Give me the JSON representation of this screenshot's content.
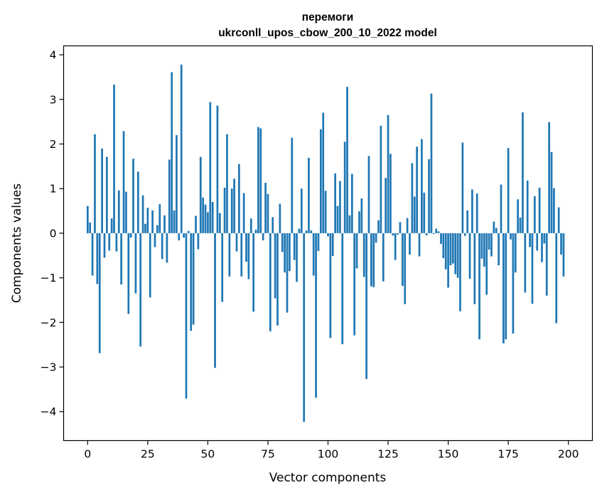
{
  "chart_data": {
    "type": "bar",
    "title_line1": "перемоги",
    "title_line2": "ukrconll_upos_cbow_200_10_2022 model",
    "xlabel": "Vector components",
    "ylabel": "Components values",
    "xlim": [
      -10,
      210
    ],
    "ylim": [
      -4.65,
      4.2
    ],
    "xticks": [
      0,
      25,
      50,
      75,
      100,
      125,
      150,
      175,
      200
    ],
    "yticks": [
      -4,
      -3,
      -2,
      -1,
      0,
      1,
      2,
      3,
      4
    ],
    "xtick_labels": [
      "0",
      "25",
      "50",
      "75",
      "100",
      "125",
      "150",
      "175",
      "200"
    ],
    "ytick_labels": [
      "−4",
      "−3",
      "−2",
      "−1",
      "0",
      "1",
      "2",
      "3",
      "4"
    ],
    "bar_color": "#1f77b4",
    "grid": false,
    "values": [
      0.61,
      0.24,
      -0.95,
      2.22,
      -1.14,
      -2.69,
      1.9,
      -0.55,
      1.71,
      -0.39,
      0.33,
      3.33,
      -0.41,
      0.96,
      -1.15,
      2.29,
      0.93,
      -1.81,
      -0.1,
      1.67,
      -1.35,
      1.38,
      -2.54,
      0.85,
      0.21,
      0.57,
      -1.44,
      0.51,
      -0.31,
      0.18,
      0.65,
      -0.58,
      0.4,
      -0.66,
      1.65,
      3.61,
      0.51,
      2.2,
      -0.16,
      3.78,
      -0.1,
      -3.71,
      0.05,
      -2.19,
      -2.05,
      0.39,
      -0.36,
      1.71,
      0.8,
      0.64,
      0.47,
      2.94,
      0.7,
      -3.02,
      2.86,
      0.45,
      -1.54,
      1.02,
      2.22,
      -0.97,
      1.0,
      1.22,
      -0.41,
      1.55,
      -0.97,
      0.9,
      -0.64,
      -1.03,
      0.33,
      -1.76,
      0.08,
      2.38,
      2.35,
      -0.16,
      1.13,
      0.88,
      -2.2,
      0.36,
      -1.46,
      -2.07,
      0.66,
      -0.42,
      -0.88,
      -1.78,
      -0.85,
      2.14,
      -0.6,
      -1.09,
      0.1,
      1.0,
      -4.23,
      0.06,
      1.69,
      0.06,
      -0.95,
      -3.69,
      -0.4,
      2.33,
      2.7,
      0.95,
      -0.07,
      -2.35,
      -0.51,
      1.34,
      0.61,
      1.17,
      -2.49,
      2.05,
      3.28,
      0.4,
      1.33,
      -2.29,
      -0.79,
      0.49,
      0.78,
      -0.98,
      -3.27,
      1.73,
      -1.19,
      -1.21,
      -0.21,
      0.29,
      2.41,
      -1.08,
      1.24,
      2.65,
      1.78,
      -0.05,
      -0.6,
      -0.03,
      0.25,
      -1.18,
      -1.59,
      0.34,
      -0.48,
      1.57,
      0.82,
      1.94,
      -0.52,
      2.11,
      0.91,
      -0.05,
      1.66,
      3.13,
      -0.02,
      0.1,
      0.04,
      -0.24,
      -0.56,
      -0.81,
      -1.22,
      -0.72,
      -0.68,
      -0.92,
      -1.0,
      -1.75,
      2.03,
      -0.06,
      0.51,
      -1.02,
      0.98,
      -1.59,
      0.89,
      -2.38,
      -0.57,
      -0.75,
      -1.38,
      -0.37,
      -0.52,
      0.26,
      0.12,
      -0.72,
      1.09,
      -2.47,
      -2.38,
      1.91,
      -0.14,
      -2.25,
      -0.88,
      0.76,
      0.35,
      2.71,
      -1.33,
      1.18,
      -0.31,
      -1.58,
      0.83,
      -0.39,
      1.02,
      -0.65,
      -0.23,
      -1.4,
      2.49,
      1.82,
      1.01,
      -2.02,
      0.58,
      -0.48,
      -0.97
    ]
  }
}
